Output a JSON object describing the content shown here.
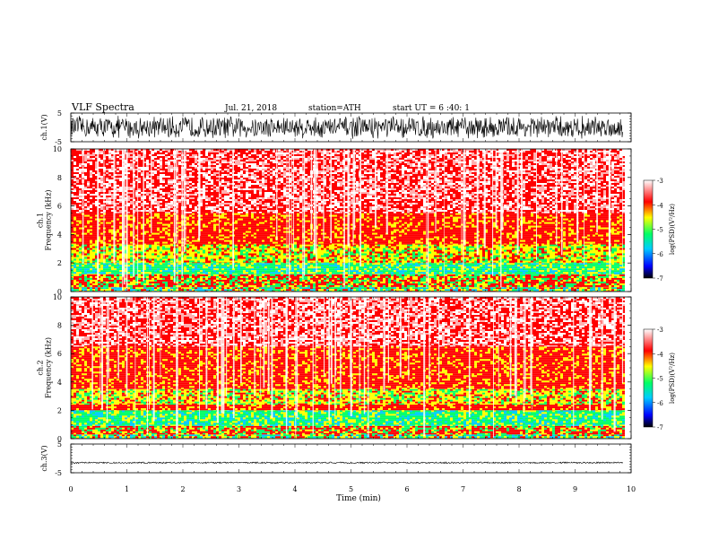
{
  "header": {
    "title": "VLF  Spectra",
    "date": "Jul.  21, 2018",
    "station": "station=ATH",
    "start": "start  UT  =   6  :40: 1"
  },
  "chart_data": [
    {
      "type": "line",
      "panel": "ch1-waveform",
      "ylabel": "ch.1(V)",
      "ylim": [
        -5,
        5
      ],
      "yticks": [
        "5",
        "-5"
      ],
      "xlim": [
        0,
        9.85
      ],
      "signal": "dense broadband oscillation filling most of ±5 V",
      "amplitude": 4.2,
      "color": "#000000"
    },
    {
      "type": "heatmap",
      "panel": "ch1-spectrogram",
      "ylabel": "ch.1\nFrequency (kHz)",
      "ylim": [
        0,
        10
      ],
      "yticks": [
        "0",
        "2",
        "4",
        "6",
        "8",
        "10"
      ],
      "xlim": [
        0,
        9.85
      ],
      "bands": [
        {
          "from_khz": 0.0,
          "to_khz": 0.3,
          "level": "mixed"
        },
        {
          "from_khz": 0.3,
          "to_khz": 1.2,
          "level": "red-yellow mixed"
        },
        {
          "from_khz": 1.2,
          "to_khz": 2.0,
          "level": "green"
        },
        {
          "from_khz": 2.0,
          "to_khz": 3.3,
          "level": "yellow"
        },
        {
          "from_khz": 3.3,
          "to_khz": 5.5,
          "level": "red"
        },
        {
          "from_khz": 5.5,
          "to_khz": 10.0,
          "level": "pink-red with white streaks"
        }
      ],
      "colorbar": {
        "label": "log(PSD)(V²/Hz)",
        "ticks": [
          "-3",
          "-4",
          "-5",
          "-6",
          "-7"
        ],
        "range": [
          -7,
          -3
        ]
      }
    },
    {
      "type": "heatmap",
      "panel": "ch2-spectrogram",
      "ylabel": "ch.2\nFrequency (kHz)",
      "ylim": [
        0,
        10
      ],
      "yticks": [
        "0",
        "2",
        "4",
        "6",
        "8",
        "10"
      ],
      "xlim": [
        0,
        9.85
      ],
      "bands": [
        {
          "from_khz": 0.0,
          "to_khz": 0.3,
          "level": "mixed"
        },
        {
          "from_khz": 0.3,
          "to_khz": 0.9,
          "level": "red-yellow mixed"
        },
        {
          "from_khz": 0.9,
          "to_khz": 2.0,
          "level": "green"
        },
        {
          "from_khz": 2.0,
          "to_khz": 2.4,
          "level": "red"
        },
        {
          "from_khz": 2.4,
          "to_khz": 3.5,
          "level": "yellow-green"
        },
        {
          "from_khz": 3.5,
          "to_khz": 6.5,
          "level": "red"
        },
        {
          "from_khz": 6.5,
          "to_khz": 10.0,
          "level": "pink-red with white streaks"
        }
      ],
      "colorbar": {
        "label": "log(PSD)(V²/Hz)",
        "ticks": [
          "-3",
          "-4",
          "-5",
          "-6",
          "-7"
        ],
        "range": [
          -7,
          -3
        ]
      }
    },
    {
      "type": "line",
      "panel": "ch3-waveform",
      "ylabel": "ch.3(V)",
      "ylim": [
        -5,
        5
      ],
      "yticks": [
        "5",
        "-5"
      ],
      "xlim": [
        0,
        9.85
      ],
      "signal": "near-constant level with small noise",
      "level": -1.5,
      "color": "#000000"
    }
  ],
  "xaxis": {
    "label": "Time  (min)",
    "ticks": [
      "0",
      "1",
      "2",
      "3",
      "4",
      "5",
      "6",
      "7",
      "8",
      "9",
      "10"
    ],
    "range": [
      0,
      10
    ]
  },
  "colors": {
    "blue": "#0000ff",
    "cyan": "#00ccff",
    "green": "#00ff66",
    "yellow": "#ffff00",
    "red": "#ff0000",
    "pink": "#ffb0b0",
    "black": "#000000"
  }
}
